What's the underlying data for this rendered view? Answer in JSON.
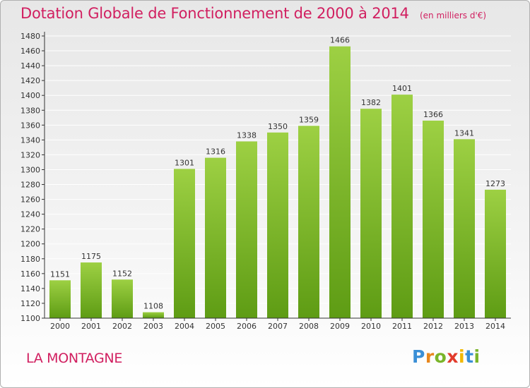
{
  "header": {
    "title": "Dotation Globale de Fonctionnement de 2000 à 2014",
    "subtitle": "(en milliers d'€)"
  },
  "footer": {
    "commune": "LA MONTAGNE",
    "logo": {
      "text": "Proxiti",
      "letters": [
        {
          "ch": "P",
          "color": "#3a8fd6"
        },
        {
          "ch": "r",
          "color": "#e8871e"
        },
        {
          "ch": "o",
          "color": "#7ab52a"
        },
        {
          "ch": "x",
          "color": "#e23b2c"
        },
        {
          "ch": "i",
          "color": "#f1b800"
        },
        {
          "ch": "t",
          "color": "#3a8fd6"
        },
        {
          "ch": "i",
          "color": "#7ab52a"
        }
      ]
    }
  },
  "chart_data": {
    "type": "bar",
    "title": "Dotation Globale de Fonctionnement de 2000 à 2014",
    "subtitle": "(en milliers d'€)",
    "xlabel": "",
    "ylabel": "",
    "categories": [
      "2000",
      "2001",
      "2002",
      "2003",
      "2004",
      "2005",
      "2006",
      "2007",
      "2008",
      "2009",
      "2010",
      "2011",
      "2012",
      "2013",
      "2014"
    ],
    "values": [
      1151,
      1175,
      1152,
      1108,
      1301,
      1316,
      1338,
      1350,
      1359,
      1466,
      1382,
      1401,
      1366,
      1341,
      1273
    ],
    "ylim": [
      1100,
      1480
    ],
    "yticks": [
      1100,
      1120,
      1140,
      1160,
      1180,
      1200,
      1220,
      1240,
      1260,
      1280,
      1300,
      1320,
      1340,
      1360,
      1380,
      1400,
      1420,
      1440,
      1460,
      1480
    ],
    "grid": true,
    "colors": {
      "bar_light": "#9dd043",
      "bar_dark": "#5e9c14",
      "grid": "#ffffff",
      "axis": "#333333",
      "text": "#333333"
    }
  }
}
